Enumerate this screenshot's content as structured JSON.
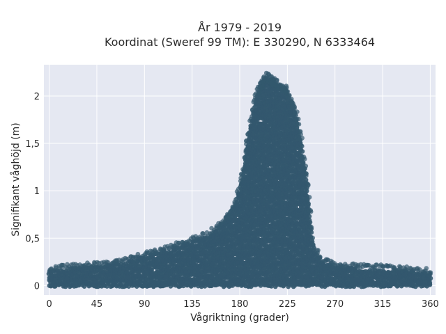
{
  "chart_data": {
    "type": "scatter",
    "title_lines": [
      "År 1979 - 2019",
      "Koordinat (Sweref 99 TM): E 330290, N 6333464"
    ],
    "xlabel": "Vågriktning (grader)",
    "ylabel": "Signifikant våghöjd (m)",
    "xlim": [
      -5,
      365
    ],
    "ylim": [
      -0.1,
      2.33
    ],
    "x_ticks": [
      0,
      45,
      90,
      135,
      180,
      225,
      270,
      315,
      360
    ],
    "x_tick_labels": [
      "0",
      "45",
      "90",
      "135",
      "180",
      "225",
      "270",
      "315",
      "360"
    ],
    "y_ticks": [
      0,
      0.5,
      1,
      1.5,
      2
    ],
    "y_tick_labels": [
      "0",
      "0,5",
      "1",
      "1,5",
      "2"
    ],
    "grid": true,
    "marker_color": "#33586e",
    "plot_background": "#e5e8f2",
    "upper_envelope": {
      "x": [
        0,
        20,
        45,
        70,
        90,
        110,
        135,
        150,
        165,
        175,
        182,
        188,
        195,
        200,
        205,
        212,
        222,
        232,
        238,
        244,
        248,
        252,
        258,
        270,
        290,
        315,
        340,
        360
      ],
      "y": [
        0.15,
        0.18,
        0.2,
        0.24,
        0.3,
        0.37,
        0.46,
        0.52,
        0.64,
        0.8,
        1.1,
        1.55,
        1.95,
        2.05,
        2.15,
        2.1,
        2.05,
        1.85,
        1.5,
        1.0,
        0.5,
        0.35,
        0.25,
        0.2,
        0.18,
        0.17,
        0.15,
        0.13
      ]
    }
  }
}
